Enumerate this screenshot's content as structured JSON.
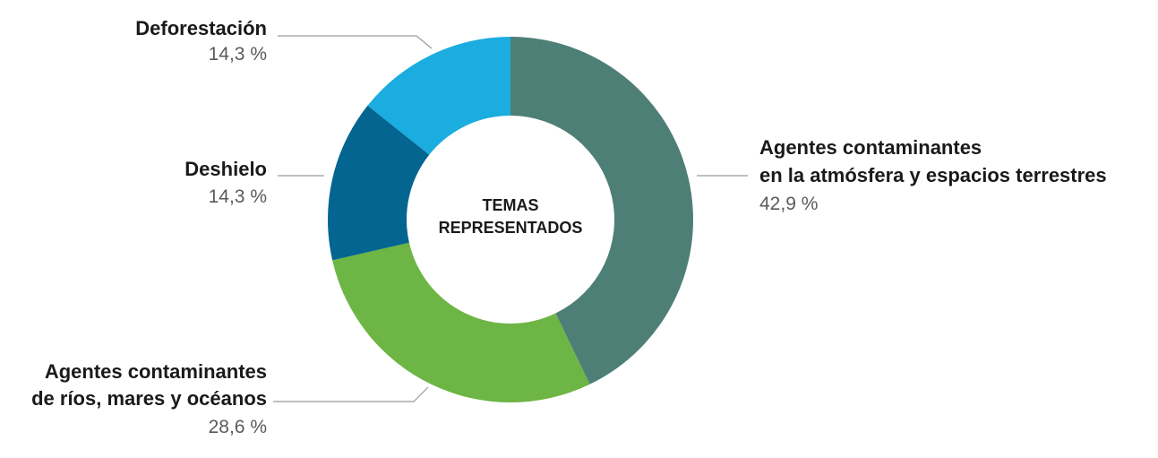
{
  "chart_data": {
    "type": "pie",
    "variant": "donut",
    "title": "",
    "center_label": [
      "TEMAS",
      "REPRESENTADOS"
    ],
    "slices": [
      {
        "label_lines": [
          "Agentes contaminantes",
          "en la atmósfera y espacios terrestres"
        ],
        "value": 42.9,
        "value_text": "42,9 %",
        "color": "#4e7f76"
      },
      {
        "label_lines": [
          "Agentes contaminantes",
          "de ríos, mares y océanos"
        ],
        "value": 28.6,
        "value_text": "28,6 %",
        "color": "#6db544"
      },
      {
        "label_lines": [
          "Deshielo"
        ],
        "value": 14.3,
        "value_text": "14,3 %",
        "color": "#036590"
      },
      {
        "label_lines": [
          "Deforestación"
        ],
        "value": 14.3,
        "value_text": "14,3 %",
        "color": "#1bace0"
      }
    ]
  }
}
